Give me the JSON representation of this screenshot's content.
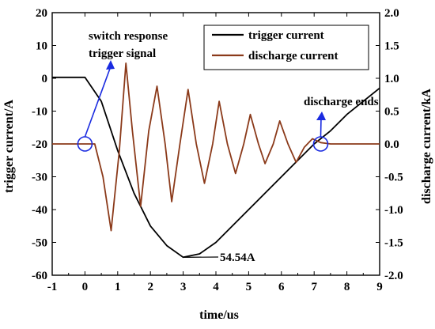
{
  "chart_data": {
    "type": "line",
    "xlabel": "time/us",
    "ylabel_left": "trigger current/A",
    "ylabel_right": "discharge current/kA",
    "xlim": [
      -1,
      9
    ],
    "ylim_left": [
      -60,
      20
    ],
    "ylim_right": [
      -2.0,
      2.0
    ],
    "x_ticks": [
      -1,
      0,
      1,
      2,
      3,
      4,
      5,
      6,
      7,
      8,
      9
    ],
    "y_ticks_left": [
      20,
      10,
      0,
      -10,
      -20,
      -30,
      -40,
      -50,
      -60
    ],
    "y_ticks_right": [
      "2.0",
      "1.5",
      "1.0",
      "0.5",
      "0.0",
      "-0.5",
      "-1.0",
      "-1.5",
      "-2.0"
    ],
    "grid": false,
    "legend_position": "top-right",
    "series": [
      {
        "name": "trigger current",
        "axis": "left",
        "color": "#000000",
        "points": [
          [
            -1.0,
            0.3
          ],
          [
            -0.5,
            0.3
          ],
          [
            0.0,
            0.3
          ],
          [
            0.5,
            -7
          ],
          [
            1.0,
            -22
          ],
          [
            1.5,
            -35
          ],
          [
            2.0,
            -45
          ],
          [
            2.5,
            -51
          ],
          [
            3.0,
            -54.54
          ],
          [
            3.5,
            -53.5
          ],
          [
            4.0,
            -50
          ],
          [
            4.5,
            -45
          ],
          [
            5.0,
            -40
          ],
          [
            5.5,
            -35
          ],
          [
            6.0,
            -30
          ],
          [
            6.5,
            -25
          ],
          [
            7.0,
            -20
          ],
          [
            7.5,
            -16
          ],
          [
            8.0,
            -11
          ],
          [
            8.5,
            -7
          ],
          [
            9.0,
            -3
          ]
        ]
      },
      {
        "name": "discharge current",
        "axis": "right",
        "color": "#8B3A1A",
        "points": [
          [
            -1.0,
            0.0
          ],
          [
            0.0,
            0.0
          ],
          [
            0.3,
            0.0
          ],
          [
            0.55,
            -0.5
          ],
          [
            0.8,
            -1.32
          ],
          [
            1.05,
            -0.1
          ],
          [
            1.25,
            1.23
          ],
          [
            1.45,
            0.2
          ],
          [
            1.7,
            -0.95
          ],
          [
            1.95,
            0.2
          ],
          [
            2.2,
            0.88
          ],
          [
            2.45,
            0.0
          ],
          [
            2.65,
            -0.88
          ],
          [
            2.9,
            0.0
          ],
          [
            3.15,
            0.83
          ],
          [
            3.4,
            0.0
          ],
          [
            3.65,
            -0.6
          ],
          [
            3.9,
            0.0
          ],
          [
            4.1,
            0.65
          ],
          [
            4.35,
            0.0
          ],
          [
            4.6,
            -0.45
          ],
          [
            4.85,
            0.0
          ],
          [
            5.05,
            0.45
          ],
          [
            5.3,
            0.0
          ],
          [
            5.5,
            -0.3
          ],
          [
            5.75,
            0.0
          ],
          [
            5.95,
            0.35
          ],
          [
            6.2,
            0.0
          ],
          [
            6.45,
            -0.28
          ],
          [
            6.7,
            -0.05
          ],
          [
            6.95,
            0.08
          ],
          [
            7.2,
            0.02
          ],
          [
            7.5,
            0.0
          ],
          [
            9.0,
            0.0
          ]
        ]
      }
    ],
    "annotations": {
      "switch_line1": "switch response",
      "switch_line2": "trigger signal",
      "discharge_ends": "discharge ends",
      "min_value": "54.54A"
    },
    "annotation_color": "#1A2BE0"
  }
}
